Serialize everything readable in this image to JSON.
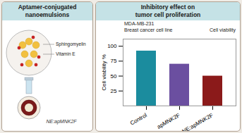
{
  "chart_data": {
    "type": "bar",
    "title": "Inhibitory effect on\ntumor cell proliferation",
    "subtitle": "MDA-MB-231\nBreast cancer cell line",
    "annotations": [
      "Aptamer-conjugated\nnanoemulsions",
      "Sphingomyelin",
      "Vitamin E",
      "NE:apMNK2F",
      "Cell viability"
    ],
    "categories": [
      "Control",
      "apMNK2F",
      "NE:apMNK2F"
    ],
    "values": [
      92,
      70,
      50
    ],
    "colors": [
      "#1b8c9e",
      "#6b4fa0",
      "#8b1a1a"
    ],
    "ylabel": "Cell viability %",
    "ylim": [
      0,
      112
    ],
    "yticks": [
      25,
      50,
      75,
      100
    ],
    "grid": false
  }
}
